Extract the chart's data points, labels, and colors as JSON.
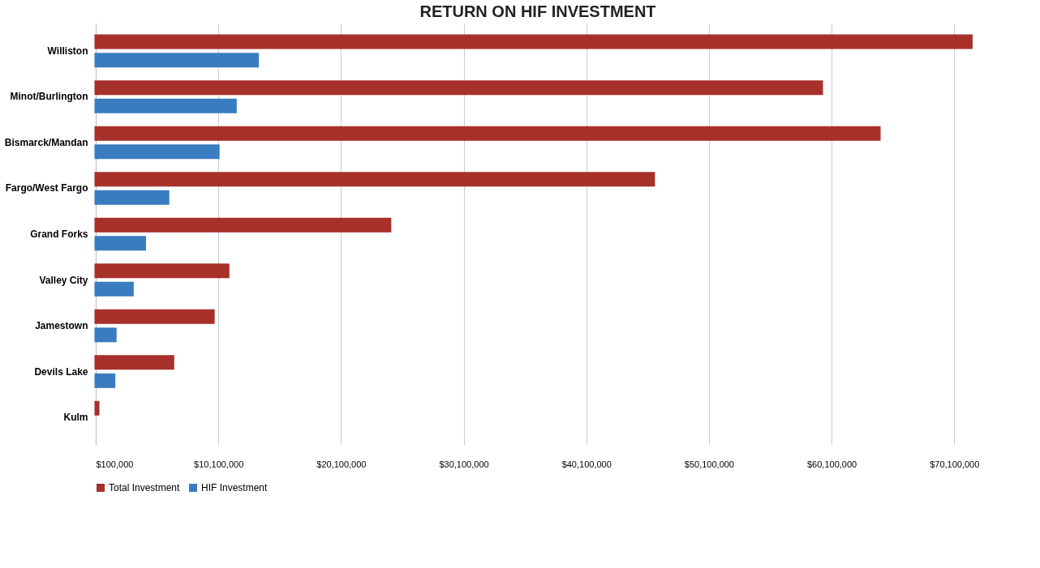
{
  "chart_data": {
    "type": "bar",
    "orientation": "horizontal",
    "title": "RETURN ON HIF INVESTMENT",
    "categories": [
      "Williston",
      "Minot/Burlington",
      "Bismarck/Mandan",
      "Fargo/West Fargo",
      "Grand Forks",
      "Valley City",
      "Jamestown",
      "Devils Lake",
      "Kulm"
    ],
    "series": [
      {
        "name": "Total Investment",
        "color": "#a8302a",
        "values": [
          71600000,
          59400000,
          64100000,
          45700000,
          24200000,
          11000000,
          9800000,
          6500000,
          400000
        ]
      },
      {
        "name": "HIF Investment",
        "color": "#3a7cc0",
        "values": [
          13400000,
          11600000,
          10200000,
          6100000,
          4200000,
          3200000,
          1800000,
          1700000,
          null
        ]
      }
    ],
    "xlim": [
      100000,
      72200000
    ],
    "xticks": [
      {
        "value": 100000,
        "label": "$100,000"
      },
      {
        "value": 10100000,
        "label": "$10,100,000"
      },
      {
        "value": 20100000,
        "label": "$20,100,000"
      },
      {
        "value": 30100000,
        "label": "$30,100,000"
      },
      {
        "value": 40100000,
        "label": "$40,100,000"
      },
      {
        "value": 50100000,
        "label": "$50,100,000"
      },
      {
        "value": 60100000,
        "label": "$60,100,000"
      },
      {
        "value": 70100000,
        "label": "$70,100,000"
      }
    ],
    "grid": "x",
    "legend": "bottom"
  }
}
